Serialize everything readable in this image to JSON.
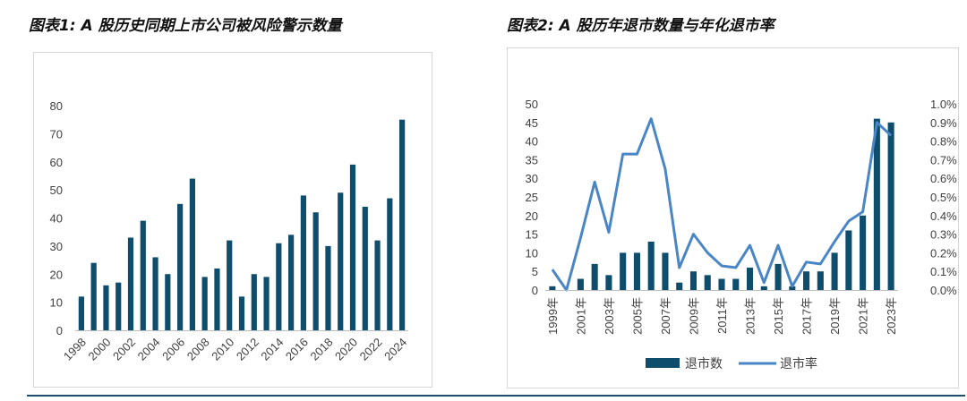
{
  "titles": {
    "chart1": "图表1: A 股历史同期上市公司被风险警示数量",
    "chart2": "图表2: A 股历年退市数量与年化退市率"
  },
  "colors": {
    "bar": "#0f4d6d",
    "line": "#4a86c5",
    "axis_text": "#404040"
  },
  "chart_data": [
    {
      "type": "bar",
      "categories": [
        "1998",
        "1999",
        "2000",
        "2001",
        "2002",
        "2003",
        "2004",
        "2005",
        "2006",
        "2007",
        "2008",
        "2009",
        "2010",
        "2011",
        "2012",
        "2013",
        "2014",
        "2015",
        "2016",
        "2017",
        "2018",
        "2019",
        "2020",
        "2021",
        "2022",
        "2023",
        "2024"
      ],
      "x_tick_labels": [
        "1998",
        "2000",
        "2002",
        "2004",
        "2006",
        "2008",
        "2010",
        "2012",
        "2014",
        "2016",
        "2018",
        "2020",
        "2022",
        "2024"
      ],
      "values": [
        12,
        24,
        16,
        17,
        33,
        39,
        26,
        20,
        45,
        54,
        19,
        22,
        32,
        12,
        20,
        19,
        31,
        34,
        48,
        42,
        30,
        49,
        59,
        44,
        32,
        47,
        75
      ],
      "ylim": [
        0,
        80
      ],
      "yticks": [
        0,
        10,
        20,
        30,
        40,
        50,
        60,
        70,
        80
      ],
      "grid": false,
      "legend": "none"
    },
    {
      "type": "bar+line",
      "categories": [
        "1999",
        "2000",
        "2001",
        "2002",
        "2003",
        "2004",
        "2005",
        "2006",
        "2007",
        "2008",
        "2009",
        "2010",
        "2011",
        "2012",
        "2013",
        "2014",
        "2015",
        "2016",
        "2017",
        "2018",
        "2019",
        "2020",
        "2021",
        "2022",
        "2023"
      ],
      "x_tick_labels": [
        "1999年",
        "2001年",
        "2003年",
        "2005年",
        "2007年",
        "2009年",
        "2011年",
        "2013年",
        "2015年",
        "2017年",
        "2019年",
        "2021年",
        "2023年"
      ],
      "series": [
        {
          "name": "退市数",
          "kind": "bar",
          "axis": "left",
          "values": [
            1,
            0,
            3,
            7,
            4,
            10,
            10,
            13,
            10,
            2,
            5,
            4,
            3,
            3,
            6,
            1,
            7,
            1,
            5,
            5,
            10,
            16,
            20,
            46,
            45
          ]
        },
        {
          "name": "退市率",
          "kind": "line",
          "axis": "right",
          "values": [
            0.11,
            0.0,
            0.28,
            0.58,
            0.31,
            0.73,
            0.73,
            0.92,
            0.65,
            0.12,
            0.3,
            0.2,
            0.13,
            0.12,
            0.24,
            0.04,
            0.24,
            0.02,
            0.15,
            0.14,
            0.26,
            0.37,
            0.42,
            0.9,
            0.83
          ]
        }
      ],
      "y_left": {
        "lim": [
          0,
          50
        ],
        "ticks": [
          "0",
          "5",
          "10",
          "15",
          "20",
          "25",
          "30",
          "35",
          "40",
          "45",
          "50"
        ]
      },
      "y_right": {
        "lim": [
          0,
          1.0
        ],
        "ticks": [
          "0.0%",
          "0.1%",
          "0.2%",
          "0.3%",
          "0.4%",
          "0.5%",
          "0.6%",
          "0.7%",
          "0.8%",
          "0.9%",
          "1.0%"
        ]
      },
      "grid": false,
      "legend": "bottom"
    }
  ]
}
